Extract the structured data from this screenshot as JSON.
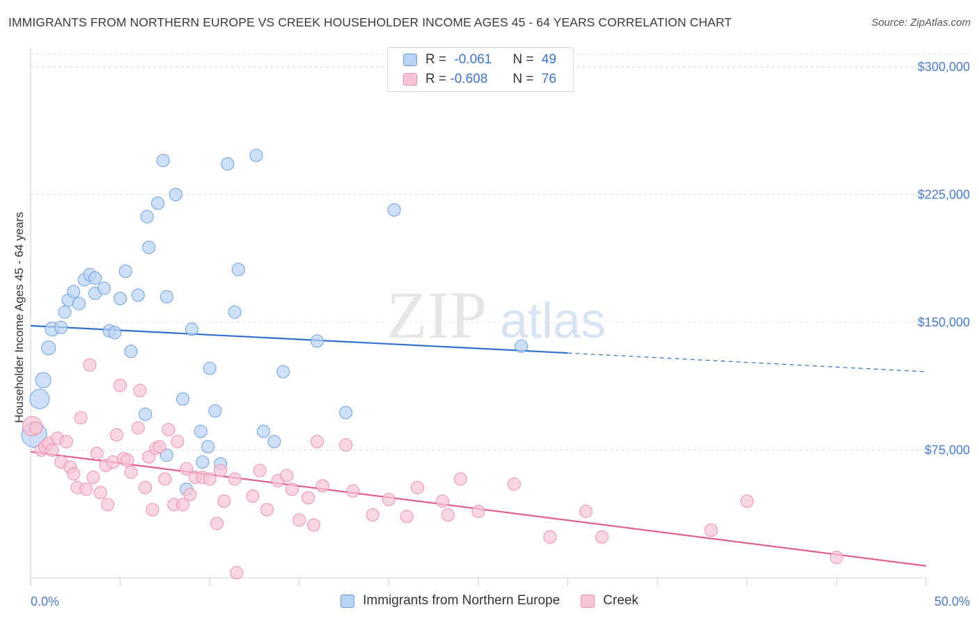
{
  "header": {
    "title": "IMMIGRANTS FROM NORTHERN EUROPE VS CREEK HOUSEHOLDER INCOME AGES 45 - 64 YEARS CORRELATION CHART",
    "source": "Source: ZipAtlas.com"
  },
  "watermark": {
    "zip": "ZIP",
    "atlas": "atlas"
  },
  "legend": {
    "rows": [
      {
        "r_label": "R =",
        "r_value": "-0.061",
        "n_label": "N =",
        "n_value": "49",
        "fill": "#b9d3f5",
        "stroke": "#6d9fe0"
      },
      {
        "r_label": "R =",
        "r_value": "-0.608",
        "n_label": "N =",
        "n_value": "76",
        "fill": "#f8c5d6",
        "stroke": "#eb8fb0"
      }
    ]
  },
  "bottom_legend": [
    {
      "label": "Immigrants from Northern Europe",
      "fill": "#b9d3f5",
      "stroke": "#6d9fe0"
    },
    {
      "label": "Creek",
      "fill": "#f8c5d6",
      "stroke": "#eb8fb0"
    }
  ],
  "chart_data": {
    "type": "scatter",
    "xlabel": "",
    "ylabel": "Householder Income Ages 45 - 64 years",
    "xlim": [
      0,
      50
    ],
    "ylim": [
      0,
      300000
    ],
    "x_tick_labels": [
      "0.0%",
      "50.0%"
    ],
    "y_ticks": [
      75000,
      150000,
      225000,
      300000
    ],
    "y_tick_labels": [
      "$75,000",
      "$150,000",
      "$225,000",
      "$300,000"
    ],
    "grid": true,
    "series": [
      {
        "name": "Immigrants from Northern Europe",
        "color": "#6d9fe0",
        "fill": "#b9d3f5",
        "trend": {
          "x0": 0,
          "y0": 148000,
          "x1": 30,
          "y1": 132000,
          "dashed_to_x": 50,
          "dashed_to_y": 121000,
          "color": "#2f6fcc"
        },
        "points": [
          [
            0.5,
            105000,
            14
          ],
          [
            0.2,
            84000,
            18
          ],
          [
            0.7,
            116000,
            11
          ],
          [
            1.0,
            135000,
            10
          ],
          [
            1.2,
            146000,
            10
          ],
          [
            1.7,
            147000,
            9
          ],
          [
            1.9,
            156000,
            9
          ],
          [
            2.1,
            163000,
            9
          ],
          [
            2.4,
            168000,
            9
          ],
          [
            2.7,
            161000,
            9
          ],
          [
            3.0,
            175000,
            9
          ],
          [
            3.3,
            178000,
            9
          ],
          [
            3.6,
            176000,
            9
          ],
          [
            3.6,
            167000,
            9
          ],
          [
            4.1,
            170000,
            9
          ],
          [
            4.4,
            145000,
            9
          ],
          [
            4.7,
            144000,
            9
          ],
          [
            5.0,
            164000,
            9
          ],
          [
            5.3,
            180000,
            9
          ],
          [
            5.6,
            133000,
            9
          ],
          [
            6.0,
            166000,
            9
          ],
          [
            6.4,
            96000,
            9
          ],
          [
            6.5,
            212000,
            9
          ],
          [
            6.6,
            194000,
            9
          ],
          [
            7.1,
            220000,
            9
          ],
          [
            7.4,
            245000,
            9
          ],
          [
            7.6,
            165000,
            9
          ],
          [
            7.6,
            72000,
            9
          ],
          [
            8.1,
            225000,
            9
          ],
          [
            8.5,
            105000,
            9
          ],
          [
            8.7,
            52000,
            9
          ],
          [
            9.0,
            146000,
            9
          ],
          [
            9.5,
            86000,
            9
          ],
          [
            9.6,
            68000,
            9
          ],
          [
            9.9,
            77000,
            9
          ],
          [
            10.0,
            123000,
            9
          ],
          [
            10.3,
            98000,
            9
          ],
          [
            10.6,
            67000,
            9
          ],
          [
            11.0,
            243000,
            9
          ],
          [
            11.4,
            156000,
            9
          ],
          [
            11.6,
            181000,
            9
          ],
          [
            12.6,
            248000,
            9
          ],
          [
            13.0,
            86000,
            9
          ],
          [
            13.6,
            80000,
            9
          ],
          [
            14.1,
            121000,
            9
          ],
          [
            16.0,
            139000,
            9
          ],
          [
            17.6,
            97000,
            9
          ],
          [
            20.3,
            216000,
            9
          ],
          [
            27.4,
            136000,
            9
          ]
        ]
      },
      {
        "name": "Creek",
        "color": "#eb8fb0",
        "fill": "#f8c5d6",
        "trend": {
          "x0": 0,
          "y0": 74000,
          "x1": 50,
          "y1": 7000,
          "color": "#e0608d"
        },
        "points": [
          [
            0.1,
            89000,
            14
          ],
          [
            0.3,
            88000,
            9
          ],
          [
            0.6,
            75000,
            9
          ],
          [
            0.8,
            77000,
            9
          ],
          [
            1.0,
            79000,
            9
          ],
          [
            1.2,
            75000,
            9
          ],
          [
            1.5,
            82000,
            9
          ],
          [
            1.7,
            68000,
            9
          ],
          [
            2.0,
            80000,
            9
          ],
          [
            2.2,
            65000,
            9
          ],
          [
            2.4,
            61000,
            9
          ],
          [
            2.6,
            53000,
            9
          ],
          [
            2.8,
            94000,
            9
          ],
          [
            3.1,
            52000,
            9
          ],
          [
            3.3,
            125000,
            9
          ],
          [
            3.5,
            59000,
            9
          ],
          [
            3.7,
            73000,
            9
          ],
          [
            3.9,
            50000,
            9
          ],
          [
            4.2,
            66000,
            9
          ],
          [
            4.3,
            43000,
            9
          ],
          [
            4.6,
            68000,
            9
          ],
          [
            4.8,
            84000,
            9
          ],
          [
            5.0,
            113000,
            9
          ],
          [
            5.2,
            70000,
            9
          ],
          [
            5.4,
            69000,
            9
          ],
          [
            5.6,
            62000,
            9
          ],
          [
            6.0,
            88000,
            9
          ],
          [
            6.1,
            110000,
            9
          ],
          [
            6.4,
            53000,
            9
          ],
          [
            6.6,
            71000,
            9
          ],
          [
            6.8,
            40000,
            9
          ],
          [
            7.0,
            76000,
            9
          ],
          [
            7.2,
            77000,
            9
          ],
          [
            7.5,
            58000,
            9
          ],
          [
            7.7,
            87000,
            9
          ],
          [
            8.0,
            43000,
            9
          ],
          [
            8.2,
            80000,
            9
          ],
          [
            8.5,
            43000,
            9
          ],
          [
            8.7,
            64000,
            9
          ],
          [
            8.9,
            49000,
            9
          ],
          [
            9.2,
            59000,
            9
          ],
          [
            9.6,
            59000,
            9
          ],
          [
            10.0,
            58000,
            9
          ],
          [
            10.4,
            32000,
            9
          ],
          [
            10.6,
            63000,
            9
          ],
          [
            10.8,
            45000,
            9
          ],
          [
            11.4,
            58000,
            9
          ],
          [
            11.5,
            3000,
            9
          ],
          [
            12.4,
            48000,
            9
          ],
          [
            12.8,
            63000,
            9
          ],
          [
            13.2,
            40000,
            9
          ],
          [
            13.8,
            57000,
            9
          ],
          [
            14.3,
            60000,
            9
          ],
          [
            14.6,
            52000,
            9
          ],
          [
            15.0,
            34000,
            9
          ],
          [
            15.5,
            47000,
            9
          ],
          [
            15.8,
            31000,
            9
          ],
          [
            16.0,
            80000,
            9
          ],
          [
            16.3,
            54000,
            9
          ],
          [
            17.6,
            78000,
            9
          ],
          [
            18.0,
            51000,
            9
          ],
          [
            19.1,
            37000,
            9
          ],
          [
            20.0,
            46000,
            9
          ],
          [
            21.0,
            36000,
            9
          ],
          [
            21.6,
            53000,
            9
          ],
          [
            23.0,
            45000,
            9
          ],
          [
            23.3,
            37000,
            9
          ],
          [
            24.0,
            58000,
            9
          ],
          [
            25.0,
            39000,
            9
          ],
          [
            27.0,
            55000,
            9
          ],
          [
            29.0,
            24000,
            9
          ],
          [
            31.0,
            39000,
            9
          ],
          [
            31.9,
            24000,
            9
          ],
          [
            38.0,
            28000,
            9
          ],
          [
            40.0,
            45000,
            9
          ],
          [
            45.0,
            12000,
            9
          ]
        ]
      }
    ]
  }
}
